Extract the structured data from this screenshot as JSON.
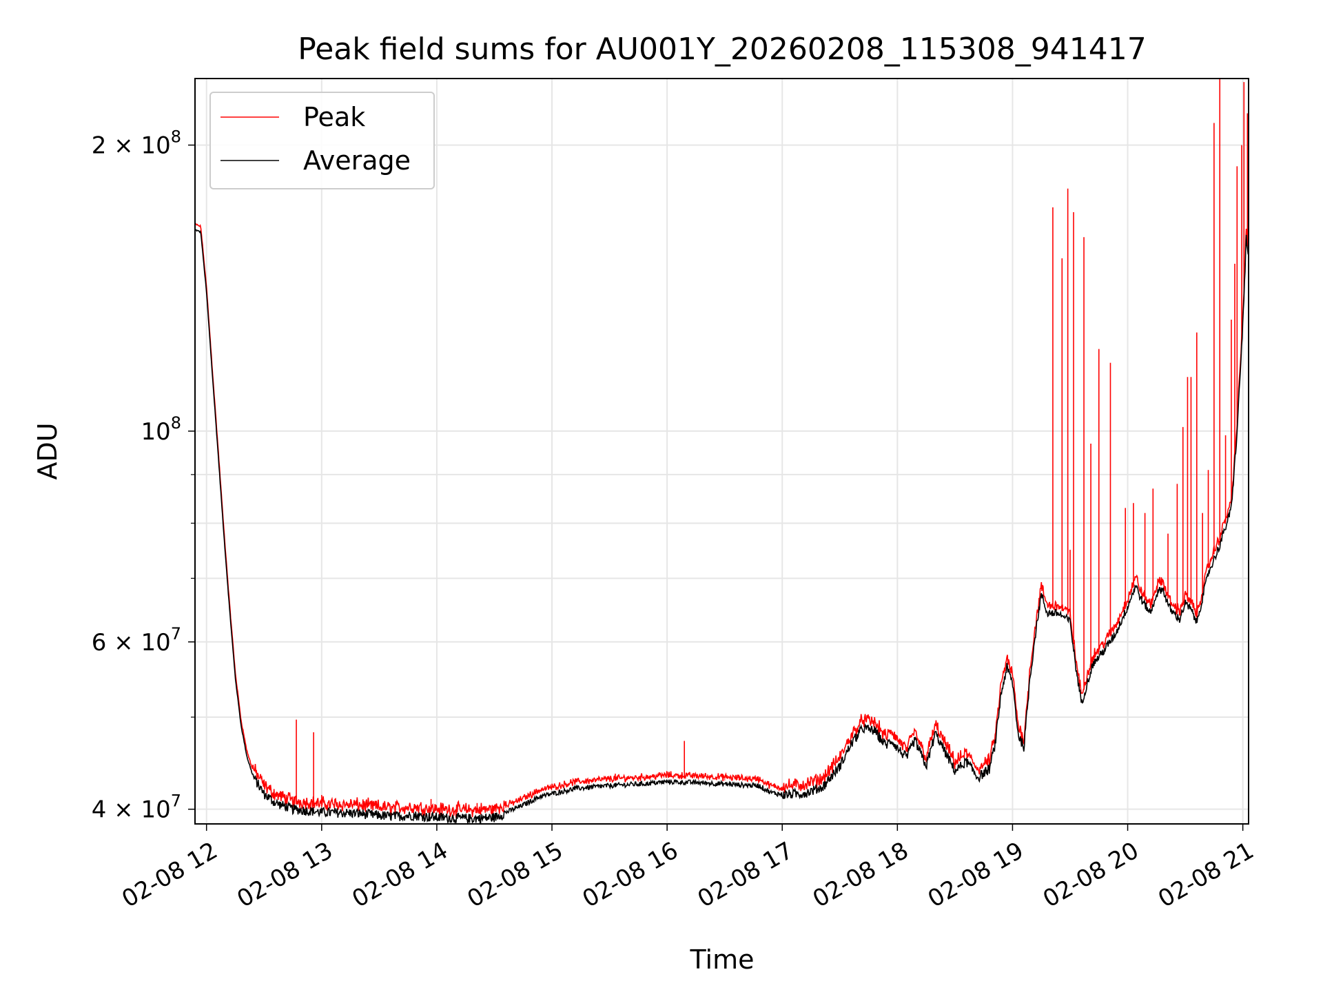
{
  "chart_data": {
    "type": "line",
    "title": "Peak field sums for AU001Y_20260208_115308_941417",
    "xlabel": "Time",
    "ylabel": "ADU",
    "yscale": "log",
    "grid": true,
    "legend_position": "upper-left",
    "x_unit": "hours since 02-08 00:00",
    "xlim": [
      11.9,
      21.05
    ],
    "ylim": [
      38600000,
      235000000
    ],
    "x_ticks": [
      {
        "value": 12,
        "label": "02-08 12"
      },
      {
        "value": 13,
        "label": "02-08 13"
      },
      {
        "value": 14,
        "label": "02-08 14"
      },
      {
        "value": 15,
        "label": "02-08 15"
      },
      {
        "value": 16,
        "label": "02-08 16"
      },
      {
        "value": 17,
        "label": "02-08 17"
      },
      {
        "value": 18,
        "label": "02-08 18"
      },
      {
        "value": 19,
        "label": "02-08 19"
      },
      {
        "value": 20,
        "label": "02-08 20"
      },
      {
        "value": 21,
        "label": "02-08 21"
      }
    ],
    "y_ticks": [
      {
        "value": 40000000,
        "base": "4 × 10",
        "exp": "7"
      },
      {
        "value": 60000000,
        "base": "6 × 10",
        "exp": "7"
      },
      {
        "value": 100000000,
        "base": "10",
        "exp": "8"
      },
      {
        "value": 200000000,
        "base": "2 × 10",
        "exp": "8"
      }
    ],
    "y_minor_ticks": [
      50000000,
      70000000,
      80000000,
      90000000
    ],
    "series": [
      {
        "name": "Peak",
        "color": "#ff0000"
      },
      {
        "name": "Average",
        "color": "#000000"
      }
    ],
    "average_curve": [
      [
        11.9,
        163000000
      ],
      [
        11.95,
        162000000
      ],
      [
        12.0,
        140000000
      ],
      [
        12.05,
        115000000
      ],
      [
        12.1,
        95000000
      ],
      [
        12.15,
        78000000
      ],
      [
        12.2,
        65000000
      ],
      [
        12.25,
        55000000
      ],
      [
        12.3,
        49000000
      ],
      [
        12.35,
        45500000
      ],
      [
        12.4,
        43500000
      ],
      [
        12.5,
        41600000
      ],
      [
        12.6,
        40700000
      ],
      [
        12.75,
        40100000
      ],
      [
        13.0,
        39800000
      ],
      [
        13.3,
        39700000
      ],
      [
        13.6,
        39400000
      ],
      [
        13.8,
        39500000
      ],
      [
        14.0,
        39300000
      ],
      [
        14.3,
        39200000
      ],
      [
        14.5,
        39300000
      ],
      [
        14.7,
        40200000
      ],
      [
        14.9,
        41300000
      ],
      [
        15.2,
        42100000
      ],
      [
        15.5,
        42400000
      ],
      [
        15.8,
        42600000
      ],
      [
        16.0,
        42800000
      ],
      [
        16.3,
        42700000
      ],
      [
        16.6,
        42500000
      ],
      [
        16.8,
        42400000
      ],
      [
        16.9,
        41700000
      ],
      [
        17.0,
        41500000
      ],
      [
        17.2,
        41700000
      ],
      [
        17.35,
        42300000
      ],
      [
        17.5,
        44500000
      ],
      [
        17.6,
        47000000
      ],
      [
        17.7,
        48800000
      ],
      [
        17.8,
        48500000
      ],
      [
        17.9,
        46800000
      ],
      [
        17.95,
        47400000
      ],
      [
        18.0,
        46500000
      ],
      [
        18.08,
        45400000
      ],
      [
        18.15,
        47400000
      ],
      [
        18.25,
        44500000
      ],
      [
        18.33,
        48200000
      ],
      [
        18.4,
        46400000
      ],
      [
        18.5,
        44000000
      ],
      [
        18.6,
        45000000
      ],
      [
        18.7,
        43300000
      ],
      [
        18.8,
        44200000
      ],
      [
        18.85,
        47000000
      ],
      [
        18.9,
        53000000
      ],
      [
        18.95,
        56500000
      ],
      [
        19.0,
        54500000
      ],
      [
        19.05,
        48000000
      ],
      [
        19.1,
        46600000
      ],
      [
        19.15,
        55000000
      ],
      [
        19.2,
        61500000
      ],
      [
        19.25,
        67500000
      ],
      [
        19.3,
        64500000
      ],
      [
        19.4,
        64400000
      ],
      [
        19.5,
        63200000
      ],
      [
        19.55,
        56500000
      ],
      [
        19.6,
        51800000
      ],
      [
        19.65,
        54500000
      ],
      [
        19.7,
        57000000
      ],
      [
        19.8,
        59000000
      ],
      [
        19.9,
        61500000
      ],
      [
        20.0,
        65500000
      ],
      [
        20.07,
        69000000
      ],
      [
        20.12,
        66500000
      ],
      [
        20.2,
        64500000
      ],
      [
        20.25,
        67500000
      ],
      [
        20.3,
        68500000
      ],
      [
        20.37,
        65000000
      ],
      [
        20.45,
        63500000
      ],
      [
        20.5,
        66000000
      ],
      [
        20.55,
        65000000
      ],
      [
        20.6,
        63000000
      ],
      [
        20.7,
        71000000
      ],
      [
        20.8,
        76000000
      ],
      [
        20.9,
        83000000
      ],
      [
        20.95,
        100000000
      ],
      [
        21.0,
        130000000
      ],
      [
        21.03,
        160000000
      ],
      [
        21.05,
        152000000
      ]
    ],
    "peak_spikes": [
      [
        12.78,
        49700000
      ],
      [
        12.93,
        48200000
      ],
      [
        13.0,
        41400000
      ],
      [
        13.3,
        40100000
      ],
      [
        13.5,
        40200000
      ],
      [
        13.95,
        41000000
      ],
      [
        14.35,
        40600000
      ],
      [
        14.6,
        40400000
      ],
      [
        15.55,
        43600000
      ],
      [
        16.15,
        47200000
      ],
      [
        16.5,
        42900000
      ],
      [
        19.35,
        172000000
      ],
      [
        19.43,
        152000000
      ],
      [
        19.48,
        180000000
      ],
      [
        19.5,
        75000000
      ],
      [
        19.53,
        170000000
      ],
      [
        19.62,
        160000000
      ],
      [
        19.68,
        97000000
      ],
      [
        19.75,
        122000000
      ],
      [
        19.85,
        118000000
      ],
      [
        19.98,
        83000000
      ],
      [
        20.05,
        84000000
      ],
      [
        20.15,
        82000000
      ],
      [
        20.22,
        87000000
      ],
      [
        20.35,
        78000000
      ],
      [
        20.43,
        88000000
      ],
      [
        20.48,
        101000000
      ],
      [
        20.52,
        114000000
      ],
      [
        20.55,
        114000000
      ],
      [
        20.6,
        127000000
      ],
      [
        20.65,
        82000000
      ],
      [
        20.7,
        91000000
      ],
      [
        20.75,
        211000000
      ],
      [
        20.8,
        235000000
      ],
      [
        20.85,
        99000000
      ],
      [
        20.9,
        131000000
      ],
      [
        20.93,
        150000000
      ],
      [
        20.95,
        190000000
      ],
      [
        20.99,
        200000000
      ],
      [
        21.01,
        233000000
      ],
      [
        21.04,
        216000000
      ]
    ]
  }
}
